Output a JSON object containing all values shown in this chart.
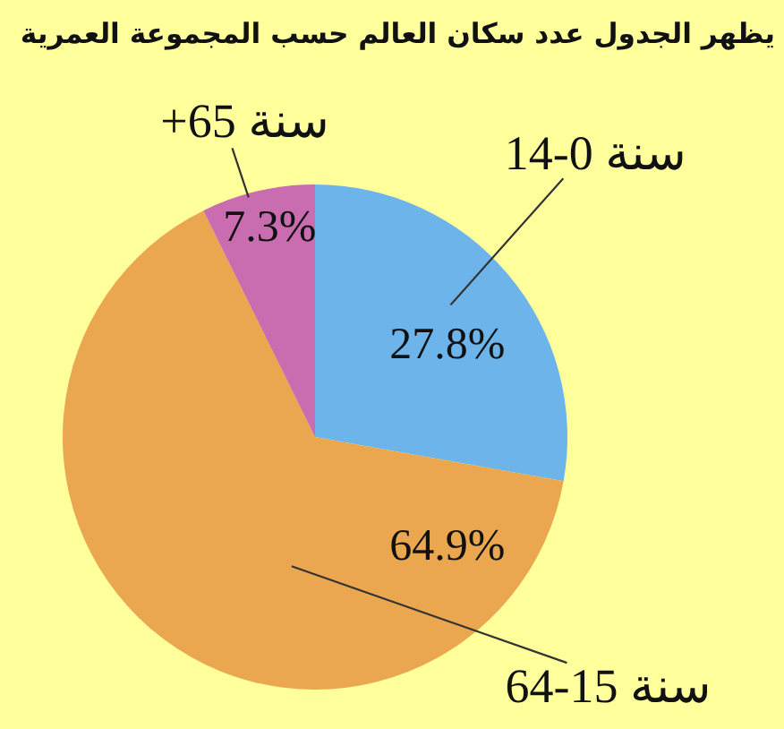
{
  "chart_data": {
    "type": "pie",
    "title": "يظهر الجدول عدد سكان العالم حسب المجموعة العمرية",
    "categories": [
      "14-0 سنة",
      "64-15 سنة",
      "+65 سنة"
    ],
    "values": [
      27.8,
      64.9,
      7.3
    ],
    "colors": [
      "#6cb4ea",
      "#eba74f",
      "#c96cb0"
    ],
    "value_labels": [
      "27.8%",
      "64.9%",
      "7.3%"
    ]
  }
}
